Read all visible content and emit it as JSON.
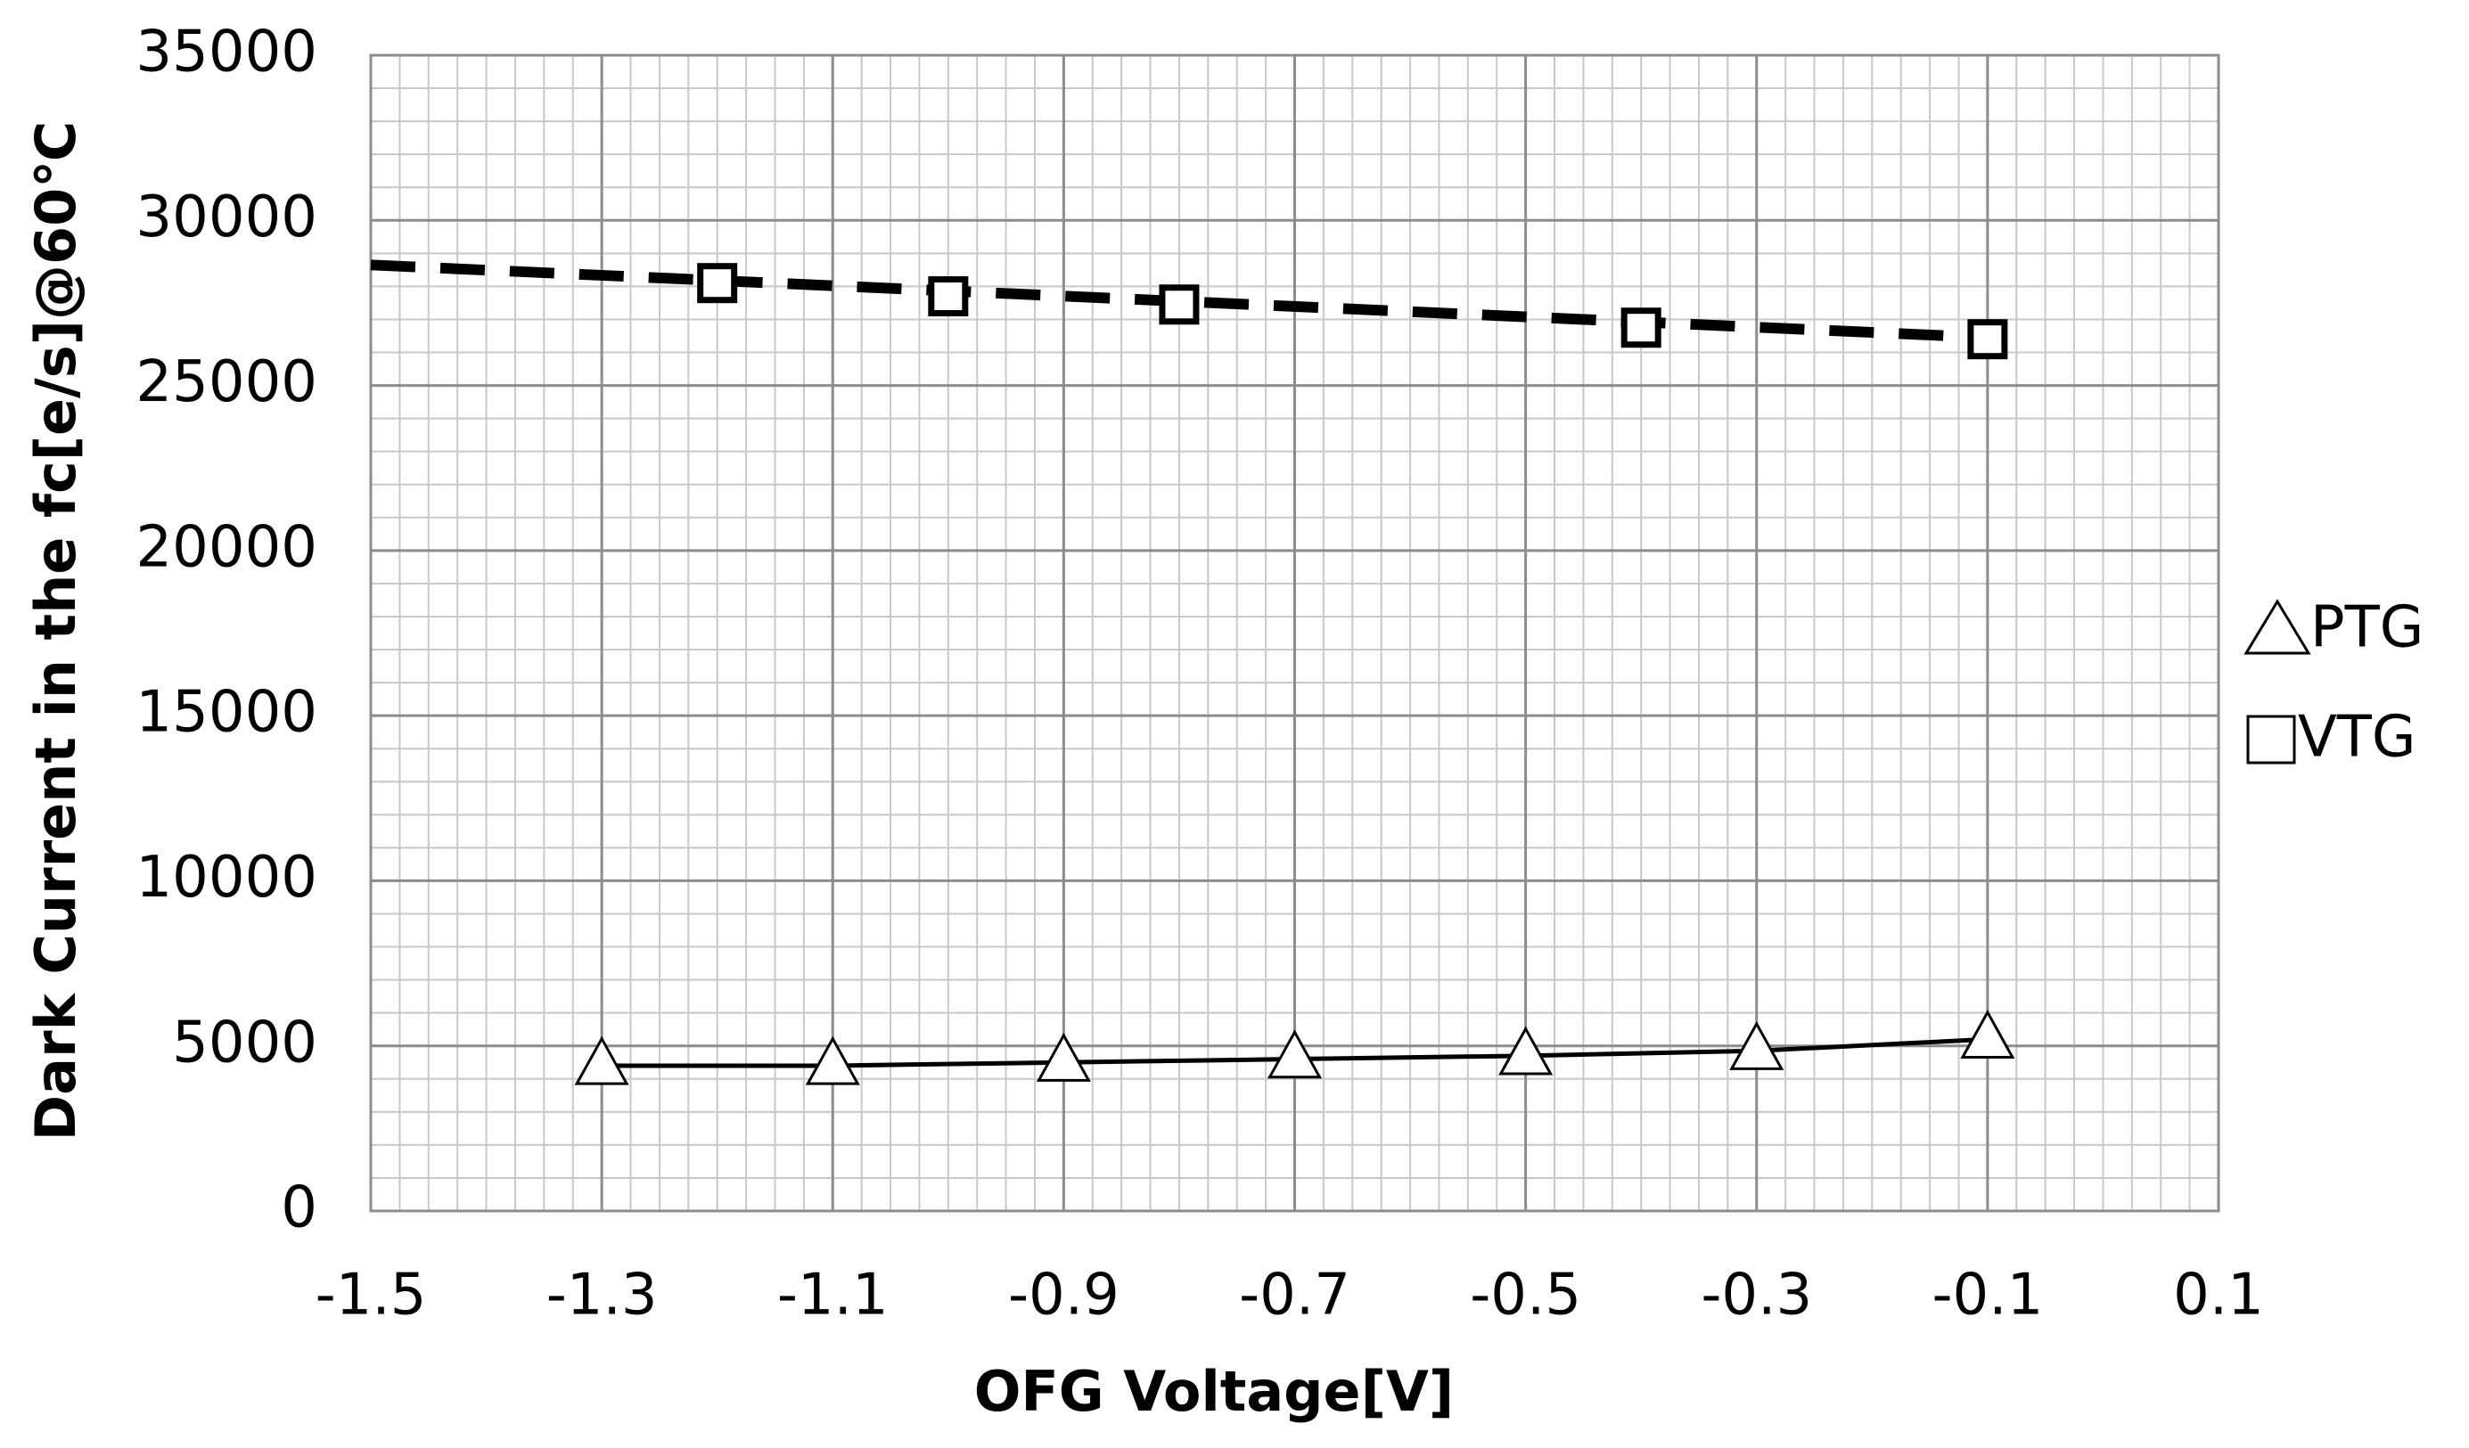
{
  "chart_data": {
    "type": "line",
    "xlabel": "OFG  Voltage[V]",
    "ylabel": "Dark Current in the fc[e/s]@60℃",
    "xlim": [
      -1.5,
      0.1
    ],
    "xticks": [
      -1.5,
      -1.3,
      -1.1,
      -0.9,
      -0.7,
      -0.5,
      -0.3,
      -0.1,
      0.1
    ],
    "ylim": [
      0,
      35000
    ],
    "yticks": [
      0,
      5000,
      10000,
      15000,
      20000,
      25000,
      30000,
      35000
    ],
    "grid": true,
    "legend": "right",
    "series": [
      {
        "name": "PTG",
        "color": "#000000",
        "marker": "triangle",
        "linestyle": "solid",
        "x": [
          -1.3,
          -1.1,
          -0.9,
          -0.7,
          -0.5,
          -0.3,
          -0.1
        ],
        "values": [
          4400,
          4400,
          4500,
          4600,
          4700,
          4850,
          5200
        ]
      },
      {
        "name": "VTG",
        "color": "#000000",
        "marker": "square",
        "linestyle": "dashed",
        "x": [
          -1.2,
          -1.0,
          -0.8,
          -0.4,
          -0.1
        ],
        "values": [
          28100,
          27700,
          27450,
          26750,
          26400
        ],
        "trendline": {
          "x": [
            -1.5,
            -0.1
          ],
          "values": [
            28650,
            26450
          ]
        }
      }
    ]
  }
}
